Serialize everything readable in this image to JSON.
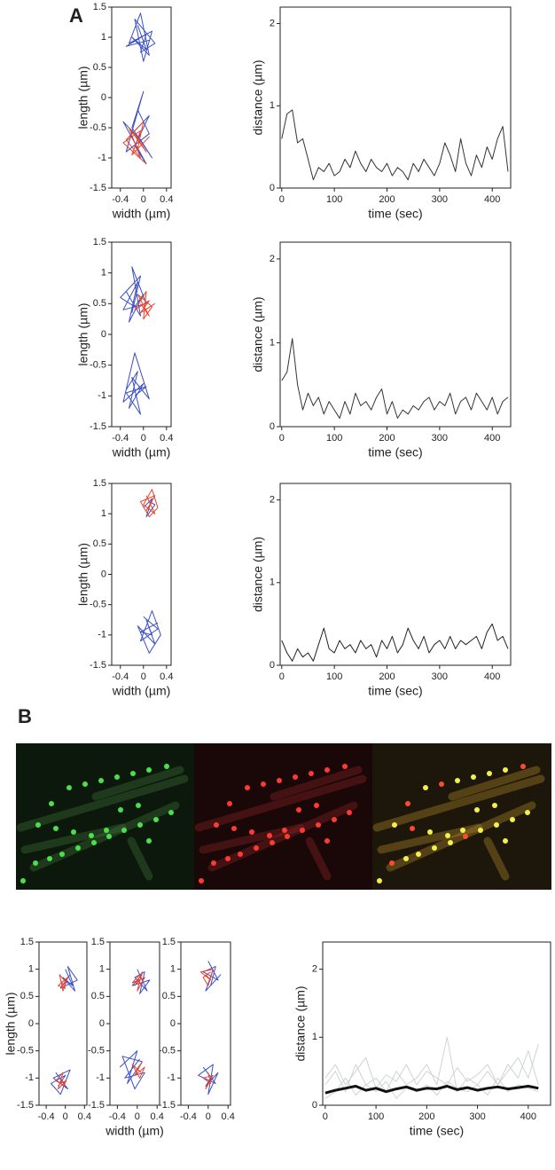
{
  "panel_labels": [
    "A",
    "B"
  ],
  "chart_data": [
    {
      "type": "line",
      "xlabel": "width (µm)",
      "ylabel": "length (µm)",
      "xlim": [
        -0.55,
        0.48
      ],
      "ylim": [
        -1.5,
        1.5
      ],
      "xticks": [
        -0.4,
        0,
        0.4
      ],
      "yticks": [
        -1.5,
        -1,
        -0.5,
        0,
        0.5,
        1,
        1.5
      ],
      "series": [
        {
          "color": "#3b4fc4",
          "x": [
            -0.1,
            0.05,
            -0.2,
            0.1,
            -0.05,
            -0.25,
            0.15,
            0,
            -0.15,
            0.2,
            -0.05,
            0.05,
            -0.3,
            0.1
          ],
          "values": [
            1.2,
            0.8,
            1.0,
            0.7,
            1.4,
            0.9,
            1.1,
            0.6,
            1.3,
            0.9,
            0.75,
            1.05,
            0.85,
            0.95
          ]
        },
        {
          "color": "#3b4fc4",
          "x": [
            -0.1,
            0.1,
            -0.3,
            0,
            -0.2,
            0.15,
            -0.05,
            -0.35,
            0.05,
            -0.15,
            0.1,
            -0.25
          ],
          "values": [
            -0.2,
            -0.6,
            -0.9,
            0.1,
            -0.5,
            -1.0,
            -0.7,
            -0.4,
            -1.1,
            -0.8,
            -0.3,
            -0.65
          ]
        },
        {
          "color": "#e8412a",
          "x": [
            -0.15,
            0.05,
            -0.25,
            -0.05,
            -0.3,
            0,
            -0.1,
            0.1,
            -0.2,
            -0.05,
            -0.35,
            0.05
          ],
          "values": [
            -0.6,
            -0.9,
            -0.5,
            -1.0,
            -0.7,
            -0.4,
            -0.85,
            -0.65,
            -0.95,
            -0.55,
            -0.75,
            -1.1
          ]
        }
      ]
    },
    {
      "type": "line",
      "xlabel": "time (sec)",
      "ylabel": "distance (µm)",
      "xlim": [
        -3,
        435
      ],
      "ylim": [
        0,
        2.2
      ],
      "xticks": [
        0,
        100,
        200,
        300,
        400
      ],
      "yticks": [
        0,
        1,
        2
      ],
      "x": [
        0,
        10,
        20,
        30,
        40,
        50,
        60,
        70,
        80,
        90,
        100,
        110,
        120,
        130,
        140,
        150,
        160,
        170,
        180,
        190,
        200,
        210,
        220,
        230,
        240,
        250,
        260,
        270,
        280,
        290,
        300,
        310,
        320,
        330,
        340,
        350,
        360,
        370,
        380,
        390,
        400,
        410,
        420,
        430
      ],
      "series": [
        {
          "color": "#333333",
          "values": [
            0.6,
            0.9,
            0.95,
            0.55,
            0.6,
            0.35,
            0.1,
            0.25,
            0.2,
            0.3,
            0.15,
            0.2,
            0.35,
            0.25,
            0.45,
            0.3,
            0.2,
            0.35,
            0.25,
            0.2,
            0.3,
            0.15,
            0.25,
            0.2,
            0.1,
            0.3,
            0.2,
            0.35,
            0.25,
            0.15,
            0.3,
            0.55,
            0.4,
            0.2,
            0.6,
            0.3,
            0.15,
            0.4,
            0.25,
            0.5,
            0.35,
            0.6,
            0.75,
            0.2
          ]
        }
      ]
    },
    {
      "type": "line",
      "xlabel": "width (µm)",
      "ylabel": "length (µm)",
      "xlim": [
        -0.55,
        0.48
      ],
      "ylim": [
        -1.5,
        1.5
      ],
      "xticks": [
        -0.4,
        0,
        0.4
      ],
      "yticks": [
        -1.5,
        -1,
        -0.5,
        0,
        0.5,
        1,
        1.5
      ],
      "series": [
        {
          "color": "#3b4fc4",
          "x": [
            -0.3,
            -0.05,
            -0.2,
            0.05,
            -0.35,
            -0.1,
            -0.25,
            0,
            -0.15,
            -0.4,
            -0.05,
            -0.2
          ],
          "values": [
            0.7,
            0.3,
            1.1,
            0.5,
            0.4,
            0.85,
            0.2,
            0.65,
            0.45,
            0.6,
            0.95,
            0.35
          ]
        },
        {
          "color": "#e8412a",
          "x": [
            -0.05,
            0.1,
            -0.1,
            0.15,
            0,
            0.05,
            -0.15,
            0.1,
            -0.05,
            0.2
          ],
          "values": [
            0.5,
            0.3,
            0.65,
            0.45,
            0.25,
            0.7,
            0.4,
            0.55,
            0.35,
            0.5
          ]
        },
        {
          "color": "#3b4fc4",
          "x": [
            -0.3,
            -0.1,
            -0.25,
            0,
            -0.35,
            -0.15,
            0.1,
            -0.2,
            -0.05,
            -0.3,
            0.05,
            -0.15
          ],
          "values": [
            -0.9,
            -0.6,
            -1.2,
            -0.8,
            -1.1,
            -0.3,
            -1.05,
            -0.7,
            -1.3,
            -0.95,
            -0.85,
            -1.0
          ]
        }
      ]
    },
    {
      "type": "line",
      "xlabel": "time (sec)",
      "ylabel": "distance (µm)",
      "xlim": [
        -3,
        435
      ],
      "ylim": [
        0,
        2.2
      ],
      "xticks": [
        0,
        100,
        200,
        300,
        400
      ],
      "yticks": [
        0,
        1,
        2
      ],
      "x": [
        0,
        10,
        20,
        30,
        40,
        50,
        60,
        70,
        80,
        90,
        100,
        110,
        120,
        130,
        140,
        150,
        160,
        170,
        180,
        190,
        200,
        210,
        220,
        230,
        240,
        250,
        260,
        270,
        280,
        290,
        300,
        310,
        320,
        330,
        340,
        350,
        360,
        370,
        380,
        390,
        400,
        410,
        420,
        430
      ],
      "series": [
        {
          "color": "#333333",
          "values": [
            0.55,
            0.65,
            1.05,
            0.5,
            0.2,
            0.4,
            0.25,
            0.35,
            0.15,
            0.3,
            0.2,
            0.1,
            0.3,
            0.15,
            0.4,
            0.25,
            0.3,
            0.2,
            0.35,
            0.45,
            0.15,
            0.3,
            0.1,
            0.2,
            0.15,
            0.25,
            0.2,
            0.3,
            0.35,
            0.2,
            0.3,
            0.25,
            0.4,
            0.15,
            0.3,
            0.35,
            0.2,
            0.4,
            0.3,
            0.2,
            0.35,
            0.15,
            0.3,
            0.35
          ]
        }
      ]
    },
    {
      "type": "line",
      "xlabel": "width (µm)",
      "ylabel": "length (µm)",
      "xlim": [
        -0.55,
        0.48
      ],
      "ylim": [
        -1.5,
        1.5
      ],
      "xticks": [
        -0.4,
        0,
        0.4
      ],
      "yticks": [
        -1.5,
        -1,
        -0.5,
        0,
        0.5,
        1,
        1.5
      ],
      "series": [
        {
          "color": "#3b4fc4",
          "x": [
            0,
            0.15,
            0.05,
            0.2,
            0.1
          ],
          "values": [
            1.1,
            1.25,
            0.95,
            1.15,
            1.2
          ]
        },
        {
          "color": "#e8412a",
          "x": [
            0.05,
            0.2,
            0,
            0.15,
            0.25,
            0.1,
            -0.05,
            0.2,
            0.05,
            0.15
          ],
          "values": [
            1.3,
            1.0,
            1.15,
            1.4,
            1.1,
            0.95,
            1.2,
            1.3,
            1.05,
            1.2
          ]
        },
        {
          "color": "#3b4fc4",
          "x": [
            0,
            0.25,
            -0.05,
            0.15,
            0.3,
            0.1,
            -0.1,
            0.2,
            0.05,
            0.15,
            -0.05,
            0.25
          ],
          "values": [
            -0.7,
            -0.9,
            -1.1,
            -0.6,
            -1.0,
            -1.3,
            -0.85,
            -1.15,
            -0.75,
            -1.0,
            -0.95,
            -0.8
          ]
        }
      ]
    },
    {
      "type": "line",
      "xlabel": "time (sec)",
      "ylabel": "distance (µm)",
      "xlim": [
        -3,
        435
      ],
      "ylim": [
        0,
        2.2
      ],
      "xticks": [
        0,
        100,
        200,
        300,
        400
      ],
      "yticks": [
        0,
        1,
        2
      ],
      "x": [
        0,
        10,
        20,
        30,
        40,
        50,
        60,
        70,
        80,
        90,
        100,
        110,
        120,
        130,
        140,
        150,
        160,
        170,
        180,
        190,
        200,
        210,
        220,
        230,
        240,
        250,
        260,
        270,
        280,
        290,
        300,
        310,
        320,
        330,
        340,
        350,
        360,
        370,
        380,
        390,
        400,
        410,
        420,
        430
      ],
      "series": [
        {
          "color": "#222222",
          "values": [
            0.3,
            0.15,
            0.05,
            0.2,
            0.1,
            0.15,
            0.05,
            0.25,
            0.45,
            0.2,
            0.15,
            0.3,
            0.2,
            0.25,
            0.15,
            0.3,
            0.2,
            0.25,
            0.1,
            0.3,
            0.2,
            0.35,
            0.15,
            0.25,
            0.45,
            0.3,
            0.2,
            0.35,
            0.15,
            0.25,
            0.3,
            0.2,
            0.35,
            0.2,
            0.3,
            0.25,
            0.3,
            0.35,
            0.2,
            0.4,
            0.5,
            0.3,
            0.35,
            0.2
          ]
        }
      ]
    },
    {
      "type": "line",
      "ylabel": "length (µm)",
      "xlim": [
        -0.55,
        0.45
      ],
      "ylim": [
        -1.5,
        1.5
      ],
      "xticks": [
        -0.4,
        0,
        0.4
      ],
      "yticks": [
        -1.5,
        -1,
        -0.5,
        0,
        0.5,
        1,
        1.5
      ],
      "series": [
        {
          "color": "#3b4fc4",
          "x": [
            0,
            0.15,
            -0.05,
            0.2,
            0.05,
            0.25,
            -0.1,
            0.1
          ],
          "values": [
            1.0,
            0.7,
            0.85,
            0.6,
            1.05,
            0.8,
            0.65,
            0.9
          ]
        },
        {
          "color": "#e8412a",
          "x": [
            -0.1,
            0,
            -0.15,
            0.05,
            -0.05,
            -0.12,
            0.02,
            -0.08
          ],
          "values": [
            0.8,
            0.65,
            0.7,
            0.85,
            0.6,
            0.9,
            0.75,
            0.7
          ]
        },
        {
          "color": "#3b4fc4",
          "x": [
            -0.2,
            0.05,
            -0.25,
            0.1,
            -0.1,
            -0.3,
            0,
            -0.15
          ],
          "values": [
            -0.9,
            -1.2,
            -1.0,
            -0.85,
            -1.3,
            -1.1,
            -0.95,
            -1.15
          ]
        },
        {
          "color": "#e8412a",
          "x": [
            -0.1,
            0,
            -0.2,
            -0.05,
            -0.15,
            0.02,
            -0.12
          ],
          "values": [
            -1.0,
            -1.15,
            -1.05,
            -0.9,
            -1.2,
            -1.05,
            -1.1
          ]
        }
      ]
    },
    {
      "type": "line",
      "xlabel": "width (µm)",
      "xlim": [
        -0.55,
        0.45
      ],
      "ylim": [
        -1.5,
        1.5
      ],
      "xticks": [
        -0.4,
        0,
        0.4
      ],
      "yticks": [
        -1.5,
        -1,
        -0.5,
        0,
        0.5,
        1,
        1.5
      ],
      "series": [
        {
          "color": "#3b4fc4",
          "x": [
            0,
            0.2,
            -0.05,
            0.15,
            0.05,
            0.25,
            -0.1,
            0.1
          ],
          "values": [
            1.0,
            0.6,
            0.85,
            0.95,
            0.55,
            0.8,
            0.7,
            0.9
          ]
        },
        {
          "color": "#e8412a",
          "x": [
            0.05,
            -0.05,
            0.1,
            0,
            0.15,
            -0.1,
            0.05
          ],
          "values": [
            0.8,
            0.7,
            0.95,
            0.6,
            0.85,
            0.75,
            0.9
          ]
        },
        {
          "color": "#3b4fc4",
          "x": [
            -0.35,
            0,
            -0.2,
            0.1,
            -0.3,
            -0.05,
            0.15,
            -0.25,
            0.05
          ],
          "values": [
            -0.8,
            -0.5,
            -1.1,
            -0.7,
            -0.6,
            -1.2,
            -0.9,
            -1.0,
            -0.65
          ]
        },
        {
          "color": "#e8412a",
          "x": [
            0,
            0.1,
            -0.05,
            0.15,
            0.05,
            -0.1,
            0.08
          ],
          "values": [
            -0.85,
            -0.7,
            -0.95,
            -0.8,
            -1.0,
            -0.75,
            -0.9
          ]
        }
      ]
    },
    {
      "type": "line",
      "xlim": [
        -0.55,
        0.45
      ],
      "ylim": [
        -1.5,
        1.5
      ],
      "xticks": [
        -0.4,
        0,
        0.4
      ],
      "yticks": [
        -1.5,
        -1,
        -0.5,
        0,
        0.5,
        1,
        1.5
      ],
      "series": [
        {
          "color": "#3b4fc4",
          "x": [
            0,
            0.2,
            -0.1,
            0.15,
            0.05,
            0.25,
            -0.05,
            0.1
          ],
          "values": [
            1.15,
            0.8,
            0.95,
            1.05,
            0.7,
            0.9,
            0.6,
            1.0
          ]
        },
        {
          "color": "#e8412a",
          "x": [
            -0.05,
            0.05,
            -0.15,
            0.1,
            0,
            -0.1,
            0.05
          ],
          "values": [
            0.9,
            0.8,
            0.95,
            1.0,
            0.7,
            0.85,
            0.95
          ]
        },
        {
          "color": "#3b4fc4",
          "x": [
            -0.1,
            0.15,
            -0.2,
            0.1,
            0,
            0.2,
            -0.05,
            0.05
          ],
          "values": [
            -0.8,
            -1.1,
            -0.95,
            -0.75,
            -1.3,
            -0.9,
            -1.15,
            -1.0
          ]
        },
        {
          "color": "#e8412a",
          "x": [
            0,
            0.05,
            -0.1,
            0.1,
            -0.05,
            0.02
          ],
          "values": [
            -0.9,
            -1.1,
            -1.0,
            -0.95,
            -1.2,
            -1.05
          ]
        }
      ]
    },
    {
      "type": "line",
      "xlabel": "time (sec)",
      "ylabel": "distance (µm)",
      "xlim": [
        -5,
        444
      ],
      "ylim": [
        0,
        2.4
      ],
      "xticks": [
        0,
        100,
        200,
        300,
        400
      ],
      "yticks": [
        0,
        1,
        2
      ],
      "x": [
        0,
        20,
        40,
        60,
        80,
        100,
        120,
        140,
        160,
        180,
        200,
        220,
        240,
        260,
        280,
        300,
        320,
        340,
        360,
        380,
        400,
        420
      ],
      "series": [
        {
          "color": "#cfd3d3",
          "values": [
            0.3,
            0.5,
            0.2,
            0.6,
            0.3,
            0.4,
            0.2,
            0.5,
            0.3,
            0.4,
            0.6,
            0.3,
            1.0,
            0.2,
            0.4,
            0.3,
            0.5,
            0.3,
            0.6,
            0.4,
            0.8,
            0.3
          ]
        },
        {
          "color": "#cfd3d3",
          "values": [
            0.1,
            0.2,
            0.4,
            0.15,
            0.3,
            0.2,
            0.35,
            0.1,
            0.25,
            0.2,
            0.3,
            0.15,
            0.35,
            0.25,
            0.2,
            0.3,
            0.15,
            0.4,
            0.2,
            0.3,
            0.25,
            0.2
          ]
        },
        {
          "color": "#cfd3d3",
          "values": [
            0.4,
            0.6,
            0.3,
            0.5,
            0.7,
            0.25,
            0.45,
            0.35,
            0.6,
            0.3,
            0.5,
            0.4,
            0.3,
            0.55,
            0.35,
            0.45,
            0.6,
            0.3,
            0.5,
            0.7,
            0.4,
            0.9
          ]
        },
        {
          "color": "#111111",
          "line_width": 3,
          "values": [
            0.18,
            0.22,
            0.25,
            0.28,
            0.22,
            0.25,
            0.2,
            0.24,
            0.27,
            0.22,
            0.25,
            0.24,
            0.28,
            0.23,
            0.26,
            0.22,
            0.25,
            0.27,
            0.24,
            0.26,
            0.28,
            0.25
          ]
        }
      ]
    }
  ]
}
